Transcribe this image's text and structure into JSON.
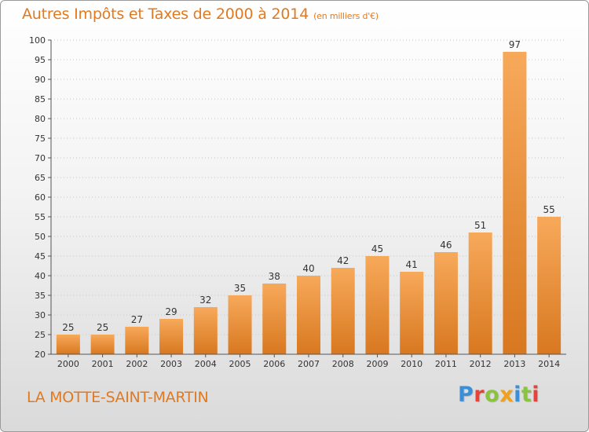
{
  "header": {
    "title": "Autres Impôts et Taxes de 2000 à 2014",
    "subtitle": "(en milliers d'€)"
  },
  "footer": {
    "commune": "LA MOTTE-SAINT-MARTIN",
    "logo_text": "Proxiti",
    "logo_colors": [
      "#3c8fd6",
      "#e8413a",
      "#8ac43f",
      "#f0a01c",
      "#3c8fd6",
      "#8ac43f",
      "#e8413a"
    ]
  },
  "colors": {
    "accent": "#e07a22",
    "bar_top": "#f7a95a",
    "bar_bottom": "#d87820"
  },
  "chart_data": {
    "type": "bar",
    "title": "Autres Impôts et Taxes de 2000 à 2014",
    "subtitle": "(en milliers d'€)",
    "categories": [
      "2000",
      "2001",
      "2002",
      "2003",
      "2004",
      "2005",
      "2006",
      "2007",
      "2008",
      "2009",
      "2010",
      "2011",
      "2012",
      "2013",
      "2014"
    ],
    "values": [
      25,
      25,
      27,
      29,
      32,
      35,
      38,
      40,
      42,
      45,
      41,
      46,
      51,
      97,
      55
    ],
    "ylim": [
      20,
      100
    ],
    "yticks": [
      20,
      25,
      30,
      35,
      40,
      45,
      50,
      55,
      60,
      65,
      70,
      75,
      80,
      85,
      90,
      95,
      100
    ],
    "grid": true,
    "xlabel": "",
    "ylabel": ""
  }
}
